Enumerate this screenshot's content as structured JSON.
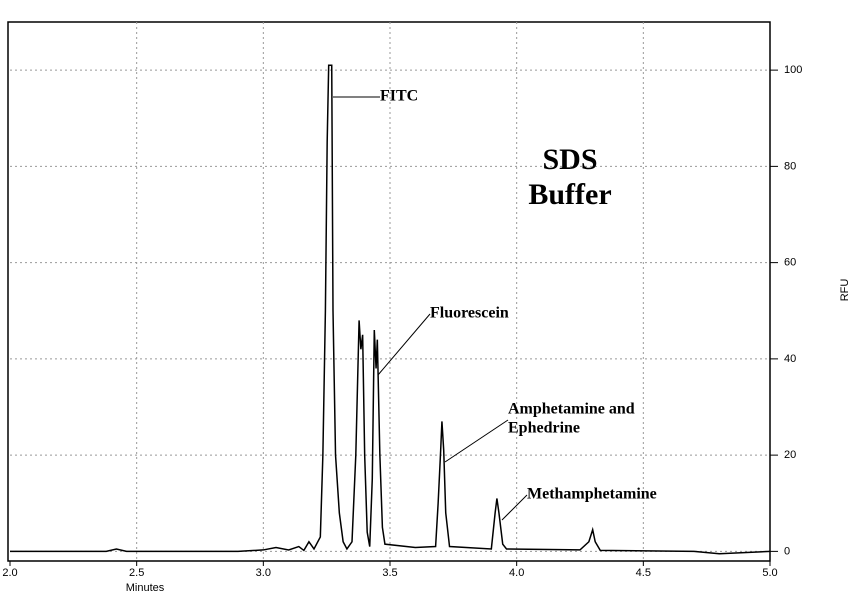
{
  "chart_data": {
    "type": "line",
    "xlabel": "Minutes",
    "ylabel": "RFU",
    "annotations": [
      "FITC",
      "Fluorescein",
      "Amphetamine and",
      "Ephedrine",
      "Methamphetamine",
      "SDS",
      "Buffer"
    ],
    "x": [
      2.0,
      2.38,
      2.42,
      2.46,
      2.9,
      3.0,
      3.05,
      3.1,
      3.14,
      3.16,
      3.18,
      3.2,
      3.225,
      3.235,
      3.245,
      3.252,
      3.258,
      3.27,
      3.275,
      3.285,
      3.3,
      3.315,
      3.33,
      3.35,
      3.365,
      3.378,
      3.385,
      3.392,
      3.4,
      3.41,
      3.42,
      3.43,
      3.438,
      3.445,
      3.45,
      3.46,
      3.47,
      3.48,
      3.6,
      3.68,
      3.69,
      3.7,
      3.705,
      3.712,
      3.72,
      3.735,
      3.9,
      3.915,
      3.922,
      3.93,
      3.945,
      3.96,
      4.25,
      4.285,
      4.3,
      4.31,
      4.33,
      4.7,
      4.8,
      5.0
    ],
    "values": [
      0,
      0,
      0.5,
      0,
      0,
      0.3,
      0.8,
      0.3,
      1,
      0.2,
      2,
      0.5,
      3,
      20,
      50,
      85,
      101,
      101,
      50,
      20,
      8,
      2,
      0.5,
      2,
      20,
      48,
      42,
      45,
      20,
      4,
      1,
      15,
      46,
      38,
      44,
      20,
      5,
      1.5,
      0.8,
      1,
      10,
      21,
      27,
      21,
      8,
      1,
      0.5,
      8,
      11,
      8,
      1.5,
      0.5,
      0.3,
      2,
      4.5,
      2,
      0.2,
      0,
      -0.5,
      0
    ],
    "color": "#000000",
    "xlim": [
      2.0,
      5.0
    ],
    "xticks": [
      {
        "value": 2,
        "label": "2.0"
      },
      2.5,
      {
        "value": 3,
        "label": "3.0"
      },
      3.5,
      {
        "value": 4,
        "label": "4.0"
      },
      4.5,
      {
        "value": 5,
        "label": "5.0"
      }
    ],
    "ylim": [
      -2,
      110
    ],
    "yticks": [
      0,
      20,
      40,
      60,
      80,
      100
    ],
    "grid": true
  }
}
